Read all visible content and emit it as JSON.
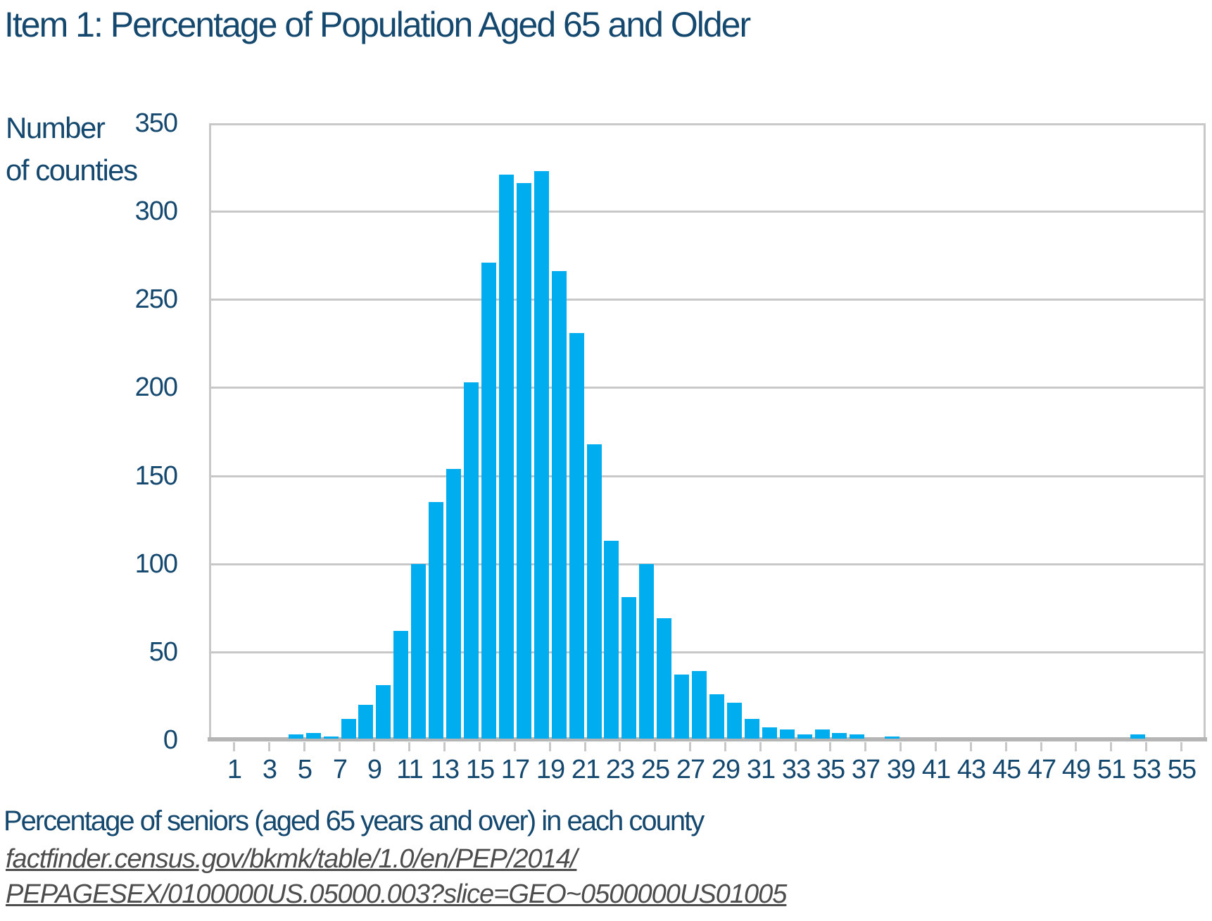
{
  "title": "Item 1: Percentage of Population Aged 65 and Older",
  "y_axis_label_lines": [
    "Number",
    "of counties"
  ],
  "x_axis_label": "Percentage of seniors (aged 65 years and over) in each county",
  "source_lines": [
    "factfinder.census.gov/bkmk/table/1.0/en/PEP/2014/",
    "PEPAGESEX/0100000US.05000.003?slice=GEO~0500000US01005"
  ],
  "colors": {
    "title_text": "#14486F",
    "bar": "#00ADEF",
    "gridline": "#C8C8C8",
    "axis_line": "#B5B5B5",
    "source_text": "#4D4D4D"
  },
  "chart_data": {
    "type": "bar",
    "subtype": "histogram",
    "title": "Item 1: Percentage of Population Aged 65 and Older",
    "xlabel": "Percentage of seniors (aged 65 years and over) in each county",
    "ylabel": "Number of counties",
    "ylim": [
      0,
      350
    ],
    "xlim": [
      0,
      56
    ],
    "grid": "horizontal",
    "legend": "none",
    "y_ticks": [
      0,
      50,
      100,
      150,
      200,
      250,
      300,
      350
    ],
    "x_tick_labels": [
      1,
      3,
      5,
      7,
      9,
      11,
      13,
      15,
      17,
      19,
      21,
      23,
      25,
      27,
      29,
      31,
      33,
      35,
      37,
      39,
      41,
      43,
      45,
      47,
      49,
      51,
      53,
      55
    ],
    "bin_width": 1,
    "bins": [
      {
        "x": 4,
        "count": 3
      },
      {
        "x": 5,
        "count": 4
      },
      {
        "x": 6,
        "count": 2
      },
      {
        "x": 7,
        "count": 12
      },
      {
        "x": 8,
        "count": 20
      },
      {
        "x": 9,
        "count": 31
      },
      {
        "x": 10,
        "count": 62
      },
      {
        "x": 11,
        "count": 100
      },
      {
        "x": 12,
        "count": 135
      },
      {
        "x": 13,
        "count": 154
      },
      {
        "x": 14,
        "count": 203
      },
      {
        "x": 15,
        "count": 271
      },
      {
        "x": 16,
        "count": 321
      },
      {
        "x": 17,
        "count": 316
      },
      {
        "x": 18,
        "count": 323
      },
      {
        "x": 19,
        "count": 266
      },
      {
        "x": 20,
        "count": 231
      },
      {
        "x": 21,
        "count": 168
      },
      {
        "x": 22,
        "count": 113
      },
      {
        "x": 23,
        "count": 81
      },
      {
        "x": 24,
        "count": 100
      },
      {
        "x": 25,
        "count": 69
      },
      {
        "x": 26,
        "count": 37
      },
      {
        "x": 27,
        "count": 39
      },
      {
        "x": 28,
        "count": 26
      },
      {
        "x": 29,
        "count": 21
      },
      {
        "x": 30,
        "count": 12
      },
      {
        "x": 31,
        "count": 7
      },
      {
        "x": 32,
        "count": 6
      },
      {
        "x": 33,
        "count": 3
      },
      {
        "x": 34,
        "count": 6
      },
      {
        "x": 35,
        "count": 4
      },
      {
        "x": 36,
        "count": 3
      },
      {
        "x": 38,
        "count": 2
      },
      {
        "x": 52,
        "count": 3
      }
    ]
  }
}
